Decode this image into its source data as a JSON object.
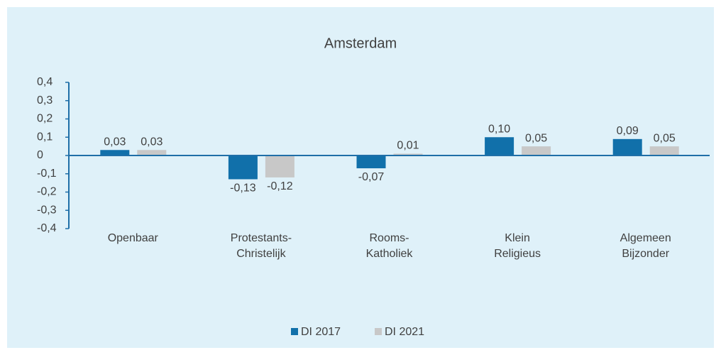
{
  "chart_data": {
    "type": "bar",
    "title": "Amsterdam",
    "categories": [
      "Openbaar",
      "Protestants-\nChristelijk",
      "Rooms-\nKatholiek",
      "Klein\nReligieus",
      "Algemeen\nBijzonder"
    ],
    "series": [
      {
        "name": "DI 2017",
        "color": "#1170aa",
        "values": [
          0.03,
          -0.13,
          -0.07,
          0.1,
          0.09
        ],
        "value_labels": [
          "0,03",
          "-0,13",
          "-0,07",
          "0,10",
          "0,09"
        ]
      },
      {
        "name": "DI 2021",
        "color": "#c8c8c8",
        "values": [
          0.03,
          -0.12,
          0.01,
          0.05,
          0.05
        ],
        "value_labels": [
          "0,03",
          "-0,12",
          "0,01",
          "0,05",
          "0,05"
        ]
      }
    ],
    "ylim": [
      -0.4,
      0.4
    ],
    "yticks": [
      {
        "value": -0.4,
        "label": "-0,4"
      },
      {
        "value": -0.3,
        "label": "-0,3"
      },
      {
        "value": -0.2,
        "label": "-0,2"
      },
      {
        "value": -0.1,
        "label": "-0,1"
      },
      0,
      {
        "value": 0.1,
        "label": "0,1"
      },
      {
        "value": 0.2,
        "label": "0,2"
      },
      {
        "value": 0.3,
        "label": "0,3"
      },
      {
        "value": 0.4,
        "label": "0,4"
      }
    ],
    "legend": "bottom"
  }
}
